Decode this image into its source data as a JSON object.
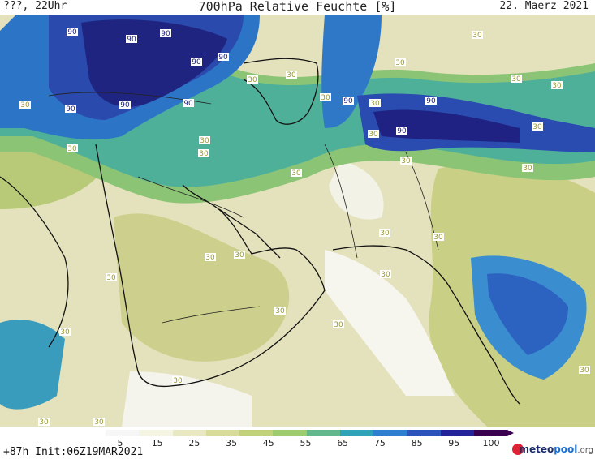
{
  "header": {
    "left": "???, 22Uhr",
    "title": "700hPa Relative Feuchte [%]",
    "right": "22. Maerz 2021"
  },
  "footer": {
    "init": "+87h Init:06Z19MAR2021",
    "brand_main": "meteo",
    "brand_accent": "pool",
    "brand_suffix": ".org"
  },
  "colorbar": {
    "ticks": [
      "5",
      "15",
      "25",
      "35",
      "45",
      "55",
      "65",
      "75",
      "85",
      "95",
      "100"
    ],
    "colors": [
      "#f6f6f6",
      "#f4f4e2",
      "#e8e8c2",
      "#d8dc9a",
      "#c2d27a",
      "#9ccc6e",
      "#62b88a",
      "#2fa2b8",
      "#2f7fd0",
      "#2d54bb",
      "#23239a",
      "#3a0050"
    ]
  },
  "map_labels": {
    "v30": "30",
    "v90": "90"
  },
  "palette": {
    "dry": "#f4f4ea",
    "tan": "#e3e2bc",
    "olive": "#cbd08a",
    "green": "#a2c66c",
    "teal": "#4fb0a0",
    "cyan": "#2aa0c0",
    "blue": "#2c6fc8",
    "deep": "#263a9e",
    "navy": "#1e1e78",
    "coast": "#111111"
  }
}
